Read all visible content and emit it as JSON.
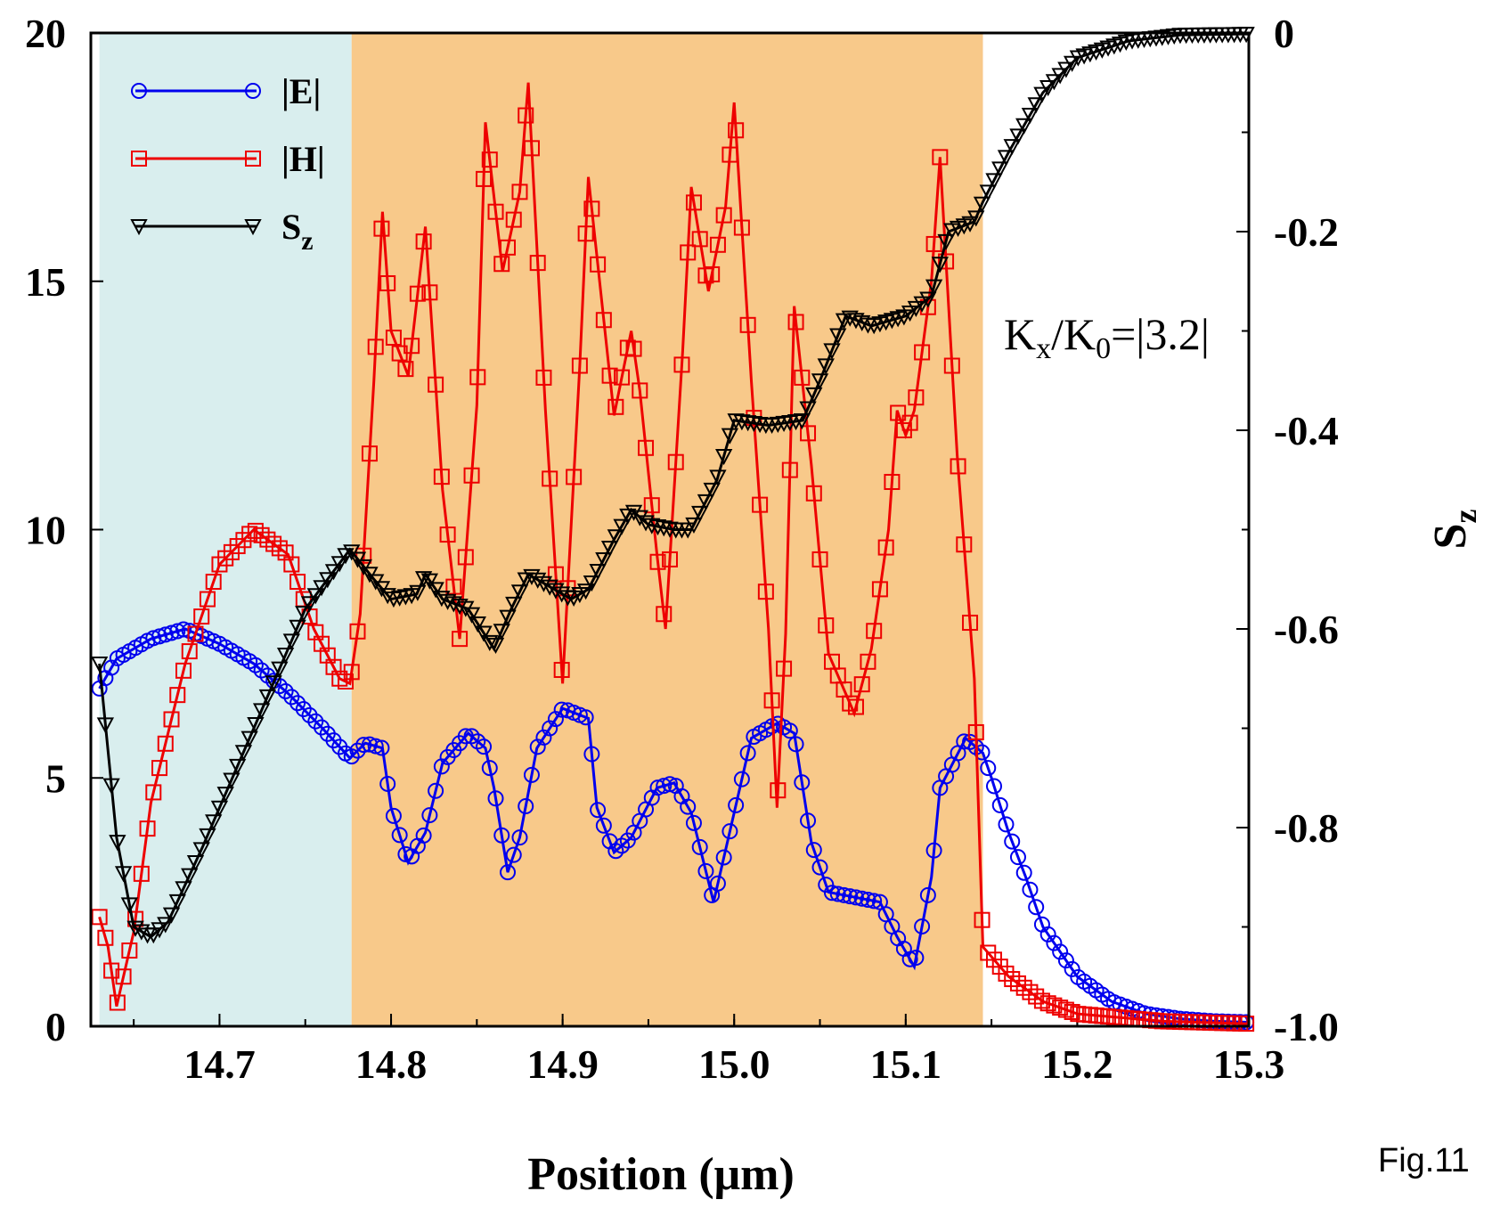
{
  "chart_data": {
    "type": "line",
    "xlabel": "Position (μm)",
    "ylabel_left": "",
    "ylabel_right": "S",
    "ylabel_right_sub": "z",
    "xlim": [
      14.625,
      15.3
    ],
    "ylim_left": [
      0,
      20
    ],
    "ylim_right": [
      -1.0,
      0
    ],
    "x_ticks": [
      {
        "v": 14.7,
        "label": "14.7"
      },
      {
        "v": 14.8,
        "label": "14.8"
      },
      {
        "v": 14.9,
        "label": "14.9"
      },
      {
        "v": 15.0,
        "label": "15.0"
      },
      {
        "v": 15.1,
        "label": "15.1"
      },
      {
        "v": 15.2,
        "label": "15.2"
      },
      {
        "v": 15.3,
        "label": "15.3"
      }
    ],
    "y_left_ticks": [
      {
        "v": 0,
        "label": "0"
      },
      {
        "v": 5,
        "label": "5"
      },
      {
        "v": 10,
        "label": "10"
      },
      {
        "v": 15,
        "label": "15"
      },
      {
        "v": 20,
        "label": "20"
      }
    ],
    "y_right_ticks": [
      {
        "v": 0,
        "label": "0"
      },
      {
        "v": -0.2,
        "label": "-0.2"
      },
      {
        "v": -0.4,
        "label": "-0.4"
      },
      {
        "v": -0.6,
        "label": "-0.6"
      },
      {
        "v": -0.8,
        "label": "-0.8"
      },
      {
        "v": -1.0,
        "label": "-1.0"
      }
    ],
    "regions": [
      {
        "x0": 14.63,
        "x1": 14.777,
        "color": "#d9eeee"
      },
      {
        "x0": 14.777,
        "x1": 15.145,
        "color": "#f8c98a"
      }
    ],
    "annotation": {
      "text": "Kx/K0=|3.2|",
      "parts": [
        "K",
        "x",
        "/K",
        "0",
        "=|3.2|"
      ]
    },
    "legend": {
      "position": "top-left"
    },
    "series": [
      {
        "name": "|E|",
        "label": "|E|",
        "sub": "",
        "color": "#0000ee",
        "marker": "circle",
        "axis": "left",
        "points": [
          [
            14.63,
            6.8
          ],
          [
            14.64,
            7.4
          ],
          [
            14.66,
            7.8
          ],
          [
            14.68,
            8.0
          ],
          [
            14.7,
            7.7
          ],
          [
            14.72,
            7.3
          ],
          [
            14.74,
            6.7
          ],
          [
            14.76,
            6.0
          ],
          [
            14.776,
            5.4
          ],
          [
            14.785,
            5.7
          ],
          [
            14.795,
            5.6
          ],
          [
            14.8,
            4.4
          ],
          [
            14.81,
            3.3
          ],
          [
            14.82,
            3.9
          ],
          [
            14.83,
            5.3
          ],
          [
            14.845,
            5.9
          ],
          [
            14.855,
            5.6
          ],
          [
            14.86,
            4.8
          ],
          [
            14.868,
            3.1
          ],
          [
            14.875,
            3.8
          ],
          [
            14.885,
            5.6
          ],
          [
            14.9,
            6.4
          ],
          [
            14.915,
            6.2
          ],
          [
            14.92,
            4.4
          ],
          [
            14.93,
            3.5
          ],
          [
            14.94,
            3.8
          ],
          [
            14.955,
            4.8
          ],
          [
            14.965,
            4.9
          ],
          [
            14.975,
            4.3
          ],
          [
            14.988,
            2.5
          ],
          [
            15.0,
            4.3
          ],
          [
            15.01,
            5.8
          ],
          [
            15.025,
            6.1
          ],
          [
            15.035,
            5.9
          ],
          [
            15.045,
            3.7
          ],
          [
            15.055,
            2.7
          ],
          [
            15.07,
            2.6
          ],
          [
            15.085,
            2.5
          ],
          [
            15.095,
            1.8
          ],
          [
            15.105,
            1.2
          ],
          [
            15.115,
            3.0
          ],
          [
            15.12,
            4.8
          ],
          [
            15.135,
            5.8
          ],
          [
            15.145,
            5.5
          ],
          [
            15.15,
            5.0
          ],
          [
            15.16,
            3.9
          ],
          [
            15.17,
            3.0
          ],
          [
            15.18,
            2.0
          ],
          [
            15.2,
            1.0
          ],
          [
            15.22,
            0.5
          ],
          [
            15.24,
            0.25
          ],
          [
            15.26,
            0.15
          ],
          [
            15.28,
            0.1
          ],
          [
            15.3,
            0.08
          ]
        ]
      },
      {
        "name": "|H|",
        "label": "|H|",
        "sub": "",
        "color": "#ee0000",
        "marker": "square",
        "axis": "left",
        "points": [
          [
            14.63,
            2.2
          ],
          [
            14.635,
            1.6
          ],
          [
            14.64,
            0.4
          ],
          [
            14.65,
            1.9
          ],
          [
            14.66,
            4.5
          ],
          [
            14.68,
            7.3
          ],
          [
            14.7,
            9.3
          ],
          [
            14.72,
            10.0
          ],
          [
            14.74,
            9.5
          ],
          [
            14.755,
            8.0
          ],
          [
            14.77,
            7.0
          ],
          [
            14.776,
            6.9
          ],
          [
            14.782,
            8.3
          ],
          [
            14.79,
            13.0
          ],
          [
            14.795,
            16.4
          ],
          [
            14.8,
            14.0
          ],
          [
            14.81,
            13.1
          ],
          [
            14.82,
            16.1
          ],
          [
            14.83,
            10.8
          ],
          [
            14.84,
            7.8
          ],
          [
            14.85,
            12.5
          ],
          [
            14.855,
            18.2
          ],
          [
            14.865,
            15.2
          ],
          [
            14.875,
            16.8
          ],
          [
            14.88,
            19.0
          ],
          [
            14.89,
            12.4
          ],
          [
            14.9,
            6.9
          ],
          [
            14.91,
            13.3
          ],
          [
            14.915,
            17.1
          ],
          [
            14.93,
            12.3
          ],
          [
            14.94,
            14.0
          ],
          [
            14.945,
            12.8
          ],
          [
            14.955,
            9.5
          ],
          [
            14.96,
            8.0
          ],
          [
            14.97,
            13.6
          ],
          [
            14.975,
            16.9
          ],
          [
            14.985,
            14.8
          ],
          [
            14.995,
            16.5
          ],
          [
            15.0,
            18.6
          ],
          [
            15.01,
            13.0
          ],
          [
            15.02,
            8.0
          ],
          [
            15.025,
            4.4
          ],
          [
            15.03,
            7.9
          ],
          [
            15.035,
            14.5
          ],
          [
            15.045,
            11.3
          ],
          [
            15.055,
            7.5
          ],
          [
            15.07,
            6.3
          ],
          [
            15.08,
            7.6
          ],
          [
            15.09,
            10.0
          ],
          [
            15.095,
            12.4
          ],
          [
            15.1,
            11.9
          ],
          [
            15.105,
            12.4
          ],
          [
            15.115,
            15.0
          ],
          [
            15.12,
            17.5
          ],
          [
            15.13,
            11.5
          ],
          [
            15.14,
            7.0
          ],
          [
            15.145,
            1.6
          ],
          [
            15.16,
            1.0
          ],
          [
            15.18,
            0.5
          ],
          [
            15.2,
            0.25
          ],
          [
            15.25,
            0.1
          ],
          [
            15.3,
            0.05
          ]
        ]
      },
      {
        "name": "Sz",
        "label": "S",
        "sub": "z",
        "color": "#000000",
        "marker": "triangle-down",
        "axis": "right",
        "points": [
          [
            14.63,
            -0.635
          ],
          [
            14.64,
            -0.81
          ],
          [
            14.65,
            -0.9
          ],
          [
            14.66,
            -0.91
          ],
          [
            14.67,
            -0.895
          ],
          [
            14.69,
            -0.82
          ],
          [
            14.72,
            -0.7
          ],
          [
            14.75,
            -0.58
          ],
          [
            14.776,
            -0.52
          ],
          [
            14.79,
            -0.55
          ],
          [
            14.8,
            -0.57
          ],
          [
            14.815,
            -0.565
          ],
          [
            14.82,
            -0.545
          ],
          [
            14.83,
            -0.57
          ],
          [
            14.845,
            -0.58
          ],
          [
            14.86,
            -0.62
          ],
          [
            14.87,
            -0.58
          ],
          [
            14.88,
            -0.545
          ],
          [
            14.89,
            -0.555
          ],
          [
            14.905,
            -0.57
          ],
          [
            14.915,
            -0.56
          ],
          [
            14.93,
            -0.51
          ],
          [
            14.94,
            -0.48
          ],
          [
            14.95,
            -0.495
          ],
          [
            14.965,
            -0.5
          ],
          [
            14.975,
            -0.5
          ],
          [
            14.99,
            -0.45
          ],
          [
            15.0,
            -0.39
          ],
          [
            15.02,
            -0.395
          ],
          [
            15.04,
            -0.39
          ],
          [
            15.05,
            -0.35
          ],
          [
            15.065,
            -0.285
          ],
          [
            15.08,
            -0.295
          ],
          [
            15.1,
            -0.285
          ],
          [
            15.115,
            -0.265
          ],
          [
            15.125,
            -0.2
          ],
          [
            15.14,
            -0.19
          ],
          [
            15.145,
            -0.17
          ],
          [
            15.16,
            -0.12
          ],
          [
            15.18,
            -0.06
          ],
          [
            15.2,
            -0.025
          ],
          [
            15.23,
            -0.008
          ],
          [
            15.26,
            -0.002
          ],
          [
            15.3,
            -0.001
          ]
        ]
      }
    ]
  },
  "fig_label": "Fig.11"
}
